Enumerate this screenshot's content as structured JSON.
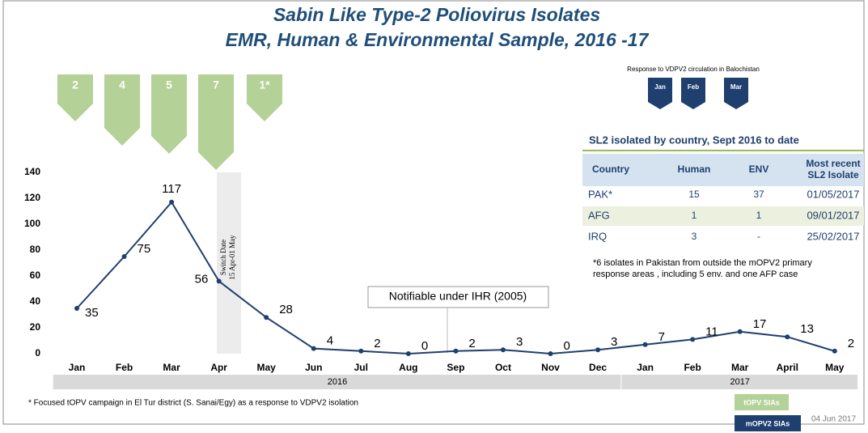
{
  "chart_data": {
    "type": "line",
    "title": "Sabin Like Type-2 Poliovirus Isolates",
    "subtitle": "EMR, Human & Environmental Sample, 2016 -17",
    "categories": [
      "Jan",
      "Feb",
      "Mar",
      "Apr",
      "May",
      "Jun",
      "Jul",
      "Aug",
      "Sep",
      "Oct",
      "Nov",
      "Dec",
      "Jan",
      "Feb",
      "Mar",
      "April",
      "May"
    ],
    "years": [
      "2016",
      "2017"
    ],
    "values": [
      35,
      75,
      117,
      56,
      28,
      4,
      2,
      0,
      2,
      3,
      0,
      3,
      7,
      11,
      17,
      13,
      2
    ],
    "color": "#1f3f6e",
    "ylim": [
      0,
      140
    ],
    "yticks": [
      0,
      20,
      40,
      60,
      80,
      100,
      120,
      140
    ],
    "topv_sias": [
      "2",
      "4",
      "5",
      "7",
      "1*"
    ],
    "mopv2_title": "Response to VDPV2 circulation in Balochistan",
    "mopv2_sias": [
      "Jan",
      "Feb",
      "Mar"
    ],
    "switch_date": [
      "Switch Date",
      "15 Apr-01 May"
    ],
    "annotation": "Notifiable under IHR (2005)",
    "footnote": "* Focused tOPV campaign in  El Tur district (S. Sanai/Egy) as a response to VDPV2 isolation",
    "legend": [
      "tOPV SIAs",
      "mOPV2 SIAs"
    ],
    "date": "04 Jun 2017"
  },
  "table": {
    "title": "SL2 isolated by country, Sept 2016 to date",
    "columns": [
      "Country",
      "Human",
      "ENV",
      [
        "Most recent",
        "SL2 Isolate"
      ]
    ],
    "rows": [
      [
        "PAK*",
        15,
        37,
        "01/05/2017"
      ],
      [
        "AFG",
        1,
        1,
        "09/01/2017"
      ],
      [
        "IRQ",
        3,
        "-",
        "25/02/2017"
      ]
    ],
    "note": [
      "*6 isolates in Pakistan from outside the mOPV2 primary",
      "response areas , including 5 env. and one AFP case"
    ]
  }
}
